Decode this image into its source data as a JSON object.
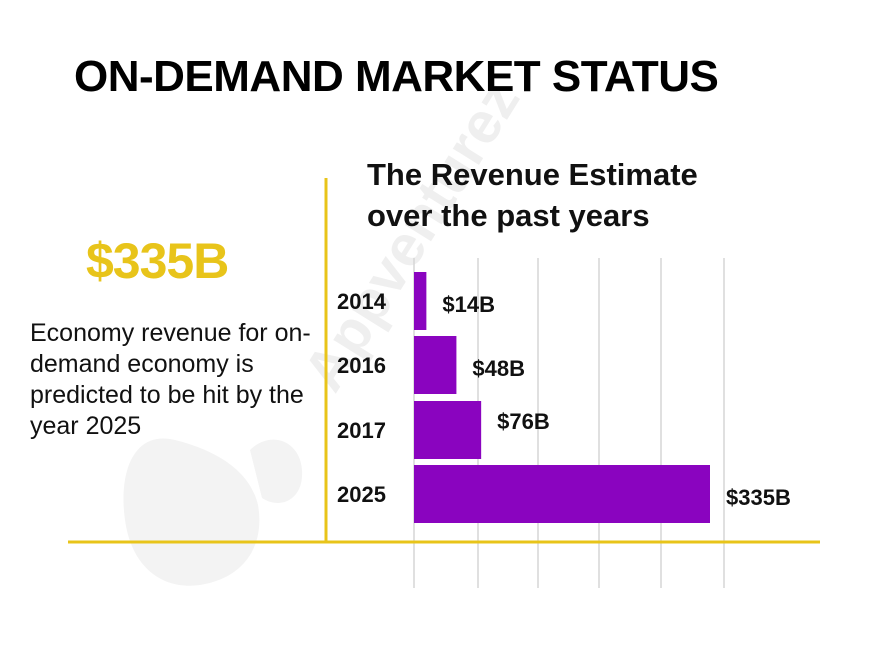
{
  "page": {
    "title": "ON-DEMAND MARKET STATUS",
    "watermark_text": "Appventurez"
  },
  "headline": {
    "value": "$335B",
    "description": "Economy revenue for on-demand economy is predicted to be hit by the year 2025"
  },
  "colors": {
    "accent_yellow": "#e8c41a",
    "bar_purple": "#8a04bf",
    "text": "#111111"
  },
  "chart_data": {
    "type": "bar",
    "orientation": "horizontal",
    "title_lines": [
      "The Revenue Estimate",
      "over the past years"
    ],
    "categories": [
      "2014",
      "2016",
      "2017",
      "2025"
    ],
    "values": [
      14,
      48,
      76,
      335
    ],
    "value_labels": [
      "$14B",
      "$48B",
      "$76B",
      "$335B"
    ],
    "unit": "billion USD",
    "xlim": [
      0,
      350
    ],
    "grid": true,
    "xlabel": "",
    "ylabel": ""
  }
}
